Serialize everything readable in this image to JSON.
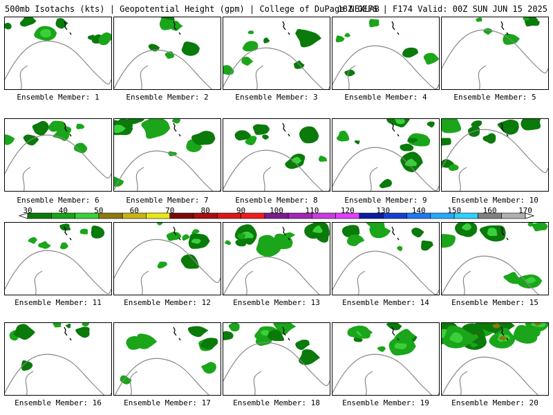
{
  "header": {
    "left": "500mb Isotachs (kts) | Geopotential Height (gpm) | College of DuPage NEXLAB",
    "right": "18Z GEFS | F174 Valid: 00Z SUN JUN 15 2025"
  },
  "colorbar": {
    "labels": [
      "30",
      "40",
      "50",
      "60",
      "70",
      "80",
      "90",
      "100",
      "110",
      "120",
      "130",
      "140",
      "150",
      "160",
      "170"
    ],
    "colors": [
      "#0a7a0a",
      "#1aa51a",
      "#3ad03a",
      "#8a7a10",
      "#c8b414",
      "#e8e818",
      "#7a0a0a",
      "#a81010",
      "#d81818",
      "#f01c1c",
      "#7a1c8c",
      "#a028b4",
      "#c83cdc",
      "#e040ff",
      "#0a1ca0",
      "#1440d0",
      "#1e78f0",
      "#28a8f8",
      "#30d0ff",
      "#808080",
      "#b0b0b0"
    ]
  },
  "members": [
    {
      "label": "Ensemble Member: 1",
      "intensity": 0.35
    },
    {
      "label": "Ensemble Member: 2",
      "intensity": 0.15
    },
    {
      "label": "Ensemble Member: 3",
      "intensity": 0.4
    },
    {
      "label": "Ensemble Member: 4",
      "intensity": 0.15
    },
    {
      "label": "Ensemble Member: 5",
      "intensity": 0.2
    },
    {
      "label": "Ensemble Member: 6",
      "intensity": 0.3
    },
    {
      "label": "Ensemble Member: 7",
      "intensity": 0.55
    },
    {
      "label": "Ensemble Member: 8",
      "intensity": 0.25
    },
    {
      "label": "Ensemble Member: 9",
      "intensity": 0.45
    },
    {
      "label": "Ensemble Member: 10",
      "intensity": 0.45
    },
    {
      "label": "Ensemble Member: 11",
      "intensity": 0.15
    },
    {
      "label": "Ensemble Member: 12",
      "intensity": 0.25
    },
    {
      "label": "Ensemble Member: 13",
      "intensity": 0.5
    },
    {
      "label": "Ensemble Member: 14",
      "intensity": 0.35
    },
    {
      "label": "Ensemble Member: 15",
      "intensity": 0.4
    },
    {
      "label": "Ensemble Member: 16",
      "intensity": 0.25
    },
    {
      "label": "Ensemble Member: 17",
      "intensity": 0.3
    },
    {
      "label": "Ensemble Member: 18",
      "intensity": 0.4
    },
    {
      "label": "Ensemble Member: 19",
      "intensity": 0.4
    },
    {
      "label": "Ensemble Member: 20",
      "intensity": 0.7
    }
  ]
}
